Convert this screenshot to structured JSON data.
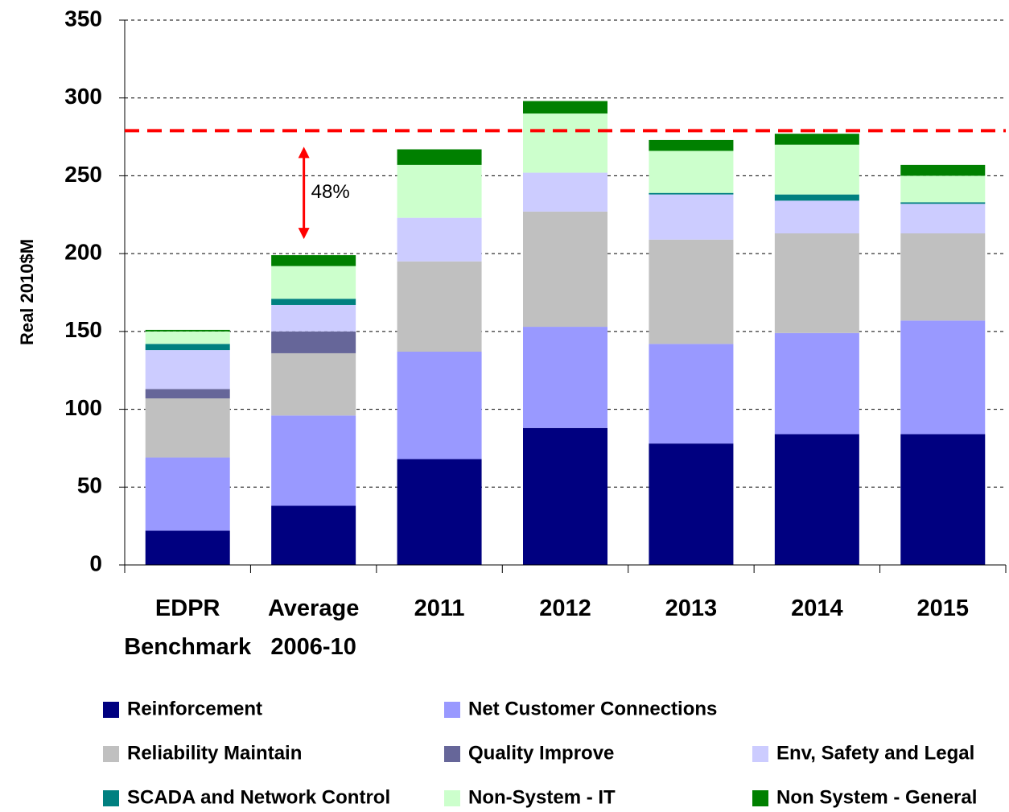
{
  "chart_data": {
    "type": "stacked_bar",
    "y_label": "Real 2010$M",
    "categories": [
      "EDPR Benchmark",
      "Average 2006-10",
      "2011",
      "2012",
      "2013",
      "2014",
      "2015"
    ],
    "series": [
      {
        "name": "Reinforcement",
        "color": "#000080",
        "values": [
          22,
          38,
          68,
          88,
          78,
          84,
          84
        ]
      },
      {
        "name": "Net Customer Connections",
        "color": "#9999ff",
        "values": [
          47,
          58,
          69,
          65,
          64,
          65,
          73
        ]
      },
      {
        "name": "Reliability Maintain",
        "color": "#c0c0c0",
        "values": [
          38,
          40,
          58,
          74,
          67,
          64,
          56
        ]
      },
      {
        "name": "Quality Improve",
        "color": "#666699",
        "values": [
          6,
          14,
          0,
          0,
          0,
          0,
          0
        ]
      },
      {
        "name": "Env, Safety and Legal",
        "color": "#ccccff",
        "values": [
          25,
          17,
          28,
          25,
          29,
          21,
          19
        ]
      },
      {
        "name": "SCADA and Network Control",
        "color": "#008080",
        "values": [
          4,
          4,
          0,
          0,
          1,
          4,
          1
        ]
      },
      {
        "name": "Non-System - IT",
        "color": "#ccffcc",
        "values": [
          8,
          21,
          34,
          38,
          27,
          32,
          17
        ]
      },
      {
        "name": "Non System - General",
        "color": "#008000",
        "values": [
          1,
          7,
          10,
          8,
          7,
          7,
          7
        ]
      }
    ],
    "reference_line": {
      "value": 279,
      "color": "#ff0000"
    },
    "annotation": {
      "text": "48%",
      "color": "#ff0000"
    },
    "ylim": [
      0,
      350
    ],
    "yticks": [
      0,
      50,
      100,
      150,
      200,
      250,
      300,
      350
    ],
    "grid": true
  }
}
